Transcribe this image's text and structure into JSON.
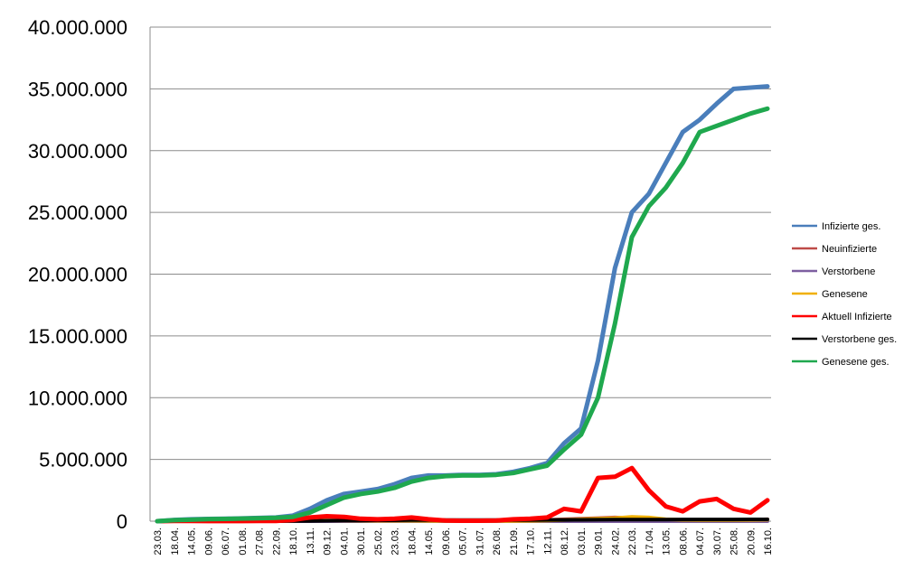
{
  "chart_data": {
    "type": "line",
    "title": "",
    "xlabel": "",
    "ylabel": "",
    "ylim": [
      0,
      40000000
    ],
    "yticks": [
      {
        "value": 0,
        "label": "0"
      },
      {
        "value": 5000000,
        "label": "5.000.000"
      },
      {
        "value": 10000000,
        "label": "10.000.000"
      },
      {
        "value": 15000000,
        "label": "15.000.000"
      },
      {
        "value": 20000000,
        "label": "20.000.000"
      },
      {
        "value": 25000000,
        "label": "25.000.000"
      },
      {
        "value": 30000000,
        "label": "30.000.000"
      },
      {
        "value": 35000000,
        "label": "35.000.000"
      },
      {
        "value": 40000000,
        "label": "40.000.000"
      }
    ],
    "grid": true,
    "legend_position": "right",
    "categories": [
      "23.03.",
      "18.04.",
      "14.05.",
      "09.06.",
      "06.07.",
      "01.08.",
      "27.08.",
      "22.09.",
      "18.10.",
      "13.11.",
      "09.12.",
      "04.01.",
      "30.01.",
      "25.02.",
      "23.03.",
      "18.04.",
      "14.05.",
      "09.06.",
      "05.07.",
      "31.07.",
      "26.08.",
      "21.09.",
      "17.10.",
      "12.11.",
      "08.12.",
      "03.01.",
      "29.01.",
      "24.02.",
      "22.03.",
      "17.04.",
      "13.05.",
      "08.06.",
      "04.07.",
      "30.07.",
      "25.08.",
      "20.09.",
      "16.10."
    ],
    "series": [
      {
        "name": "Infizierte ges.",
        "color": "#4a7ebb",
        "values": [
          0,
          100000,
          150000,
          180000,
          200000,
          230000,
          260000,
          300000,
          450000,
          1000000,
          1700000,
          2200000,
          2400000,
          2600000,
          3000000,
          3500000,
          3700000,
          3700000,
          3750000,
          3750000,
          3800000,
          4000000,
          4300000,
          4700000,
          6300000,
          7500000,
          13000000,
          20500000,
          25000000,
          26500000,
          29000000,
          31500000,
          32500000,
          33800000,
          35000000,
          35100000,
          35200000
        ]
      },
      {
        "name": "Neuinfizierte",
        "color": "#be4b48",
        "values": [
          0,
          10000,
          10000,
          10000,
          10000,
          10000,
          10000,
          20000,
          40000,
          60000,
          50000,
          40000,
          30000,
          30000,
          40000,
          30000,
          20000,
          15000,
          15000,
          15000,
          20000,
          25000,
          40000,
          100000,
          150000,
          200000,
          250000,
          300000,
          250000,
          150000,
          100000,
          80000,
          90000,
          80000,
          90000,
          120000,
          150000
        ]
      },
      {
        "name": "Verstorbene",
        "color": "#7d5fa0",
        "values": [
          0,
          300,
          200,
          100,
          100,
          100,
          100,
          200,
          500,
          1000,
          1000,
          800,
          600,
          500,
          400,
          300,
          200,
          100,
          100,
          100,
          100,
          150,
          300,
          600,
          1000,
          1500,
          2000,
          2500,
          2200,
          1500,
          1000,
          800,
          700,
          600,
          600,
          700,
          800
        ]
      },
      {
        "name": "Genesene",
        "color": "#f0b000",
        "values": [
          0,
          5000,
          8000,
          9000,
          10000,
          10000,
          10000,
          15000,
          30000,
          50000,
          60000,
          50000,
          40000,
          35000,
          35000,
          40000,
          30000,
          20000,
          15000,
          15000,
          15000,
          20000,
          30000,
          60000,
          100000,
          150000,
          200000,
          250000,
          350000,
          300000,
          150000,
          100000,
          90000,
          90000,
          90000,
          100000,
          120000
        ]
      },
      {
        "name": "Aktuell Infizierte",
        "color": "#ff0000",
        "values": [
          0,
          20000,
          20000,
          10000,
          10000,
          10000,
          15000,
          20000,
          100000,
          300000,
          400000,
          350000,
          200000,
          150000,
          200000,
          300000,
          150000,
          50000,
          40000,
          40000,
          60000,
          150000,
          200000,
          300000,
          1000000,
          800000,
          3500000,
          3600000,
          4300000,
          2500000,
          1200000,
          800000,
          1600000,
          1800000,
          1000000,
          700000,
          1700000
        ]
      },
      {
        "name": "Verstorbene ges.",
        "color": "#000000",
        "values": [
          0,
          5000,
          8000,
          9000,
          9000,
          9500,
          9500,
          10000,
          12000,
          20000,
          35000,
          50000,
          60000,
          70000,
          75000,
          85000,
          88000,
          90000,
          91000,
          92000,
          93000,
          94000,
          96000,
          100000,
          105000,
          110000,
          120000,
          125000,
          130000,
          133000,
          135000,
          137000,
          138000,
          140000,
          142000,
          143000,
          145000
        ]
      },
      {
        "name": "Genesene ges.",
        "color": "#1fa84e",
        "values": [
          0,
          80000,
          120000,
          160000,
          180000,
          210000,
          240000,
          270000,
          350000,
          700000,
          1300000,
          1900000,
          2200000,
          2400000,
          2700000,
          3200000,
          3500000,
          3650000,
          3700000,
          3700000,
          3750000,
          3900000,
          4200000,
          4500000,
          5800000,
          7000000,
          10000000,
          16000000,
          23000000,
          25500000,
          27000000,
          29000000,
          31500000,
          32000000,
          32500000,
          33000000,
          33400000
        ]
      }
    ]
  }
}
